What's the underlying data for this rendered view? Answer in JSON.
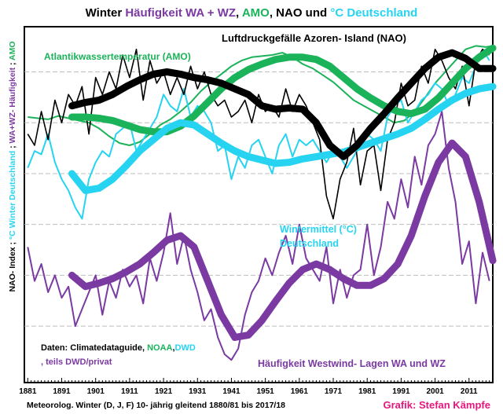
{
  "colors": {
    "amo": "#1bb35a",
    "nao": "#000000",
    "temp": "#26d4f2",
    "wz": "#7a3aa2",
    "credit": "#e5177d",
    "grid": "#bdbdbd"
  },
  "chart_data": {
    "type": "line",
    "title_parts": [
      {
        "text": "Winter ",
        "color": "#000000"
      },
      {
        "text": "Häufigkeit WA + WZ",
        "color": "#7a3aa2"
      },
      {
        "text": ", ",
        "color": "#000000"
      },
      {
        "text": "AMO",
        "color": "#1bb35a"
      },
      {
        "text": ", NAO und ",
        "color": "#000000"
      },
      {
        "text": "°C Deutschland",
        "color": "#26d4f2"
      }
    ],
    "ylabel_parts": [
      {
        "text": "NAO- Index ;",
        "color": "#000000"
      },
      {
        "text": "°C Winter Deutschland",
        "color": "#26d4f2"
      },
      {
        "text": ";",
        "color": "#000000"
      },
      {
        "text": "WA+WZ- Häufigkeit",
        "color": "#7a3aa2"
      },
      {
        "text": ";",
        "color": "#000000"
      },
      {
        "text": "AMO",
        "color": "#1bb35a"
      }
    ],
    "xlim": [
      1880,
      2018
    ],
    "x_ticks": [
      1881,
      1891,
      1901,
      1911,
      1921,
      1931,
      1941,
      1951,
      1961,
      1971,
      1981,
      1991,
      2001,
      2011
    ],
    "grid": "horizontal, dashed",
    "footer_left": "Meteorolog. Winter (D, J, F) 10- jährig gleitend 1880/81 bis 2017/18",
    "footer_right": "Grafik: Stefan Kämpfe",
    "sources_parts": [
      {
        "text": "Daten: Climatedataguide,  ",
        "color": "#000000"
      },
      {
        "text": "NOAA",
        "color": "#1bb35a"
      },
      {
        "text": ",",
        "color": "#000000"
      },
      {
        "text": "DWD",
        "color": "#26d4f2"
      },
      {
        "text": ", teils DWD/privat",
        "color": "#7a3aa2"
      }
    ],
    "series": [
      {
        "key": "amo",
        "name": "Atlantikwassertemperatur (AMO)",
        "raw_x": [
          1881,
          1884,
          1887,
          1890,
          1893,
          1896,
          1899,
          1902,
          1905,
          1908,
          1911,
          1914,
          1917,
          1920,
          1923,
          1926,
          1929,
          1932,
          1935,
          1938,
          1941,
          1944,
          1947,
          1950,
          1953,
          1956,
          1959,
          1962,
          1965,
          1968,
          1971,
          1974,
          1977,
          1980,
          1983,
          1986,
          1989,
          1992,
          1995,
          1998,
          2001,
          2004,
          2007,
          2010,
          2013,
          2016,
          2018
        ],
        "raw_y": [
          0.35,
          0.34,
          0.33,
          0.36,
          0.34,
          0.32,
          0.3,
          0.25,
          0.18,
          0.12,
          0.1,
          0.13,
          0.2,
          0.28,
          0.33,
          0.4,
          0.48,
          0.58,
          0.66,
          0.73,
          0.8,
          0.85,
          0.88,
          0.89,
          0.9,
          0.92,
          0.88,
          0.82,
          0.78,
          0.72,
          0.66,
          0.58,
          0.5,
          0.45,
          0.4,
          0.35,
          0.3,
          0.32,
          0.4,
          0.52,
          0.65,
          0.75,
          0.85,
          0.95,
          0.98,
          0.97,
          0.98
        ],
        "smooth_x": [
          1894,
          1898,
          1902,
          1906,
          1910,
          1914,
          1918,
          1922,
          1926,
          1930,
          1934,
          1938,
          1942,
          1946,
          1950,
          1954,
          1958,
          1962,
          1966,
          1970,
          1974,
          1978,
          1982,
          1986,
          1990,
          1994,
          1998,
          2002,
          2006,
          2010,
          2014,
          2018
        ],
        "smooth_y": [
          0.35,
          0.35,
          0.34,
          0.32,
          0.28,
          0.24,
          0.22,
          0.22,
          0.27,
          0.36,
          0.48,
          0.6,
          0.7,
          0.77,
          0.82,
          0.86,
          0.88,
          0.88,
          0.86,
          0.8,
          0.7,
          0.6,
          0.52,
          0.45,
          0.4,
          0.38,
          0.42,
          0.52,
          0.65,
          0.78,
          0.88,
          0.96
        ]
      },
      {
        "key": "nao",
        "name": "Luftdruckgefälle Azoren- Island (NAO)",
        "raw_x": [
          1881,
          1883,
          1885,
          1887,
          1889,
          1891,
          1893,
          1895,
          1897,
          1899,
          1901,
          1903,
          1905,
          1907,
          1909,
          1911,
          1913,
          1915,
          1917,
          1919,
          1921,
          1923,
          1925,
          1927,
          1929,
          1931,
          1933,
          1935,
          1937,
          1939,
          1941,
          1943,
          1945,
          1947,
          1949,
          1951,
          1953,
          1955,
          1957,
          1959,
          1961,
          1963,
          1965,
          1967,
          1969,
          1971,
          1973,
          1975,
          1977,
          1979,
          1981,
          1983,
          1985,
          1987,
          1989,
          1991,
          1993,
          1995,
          1997,
          1999,
          2001,
          2003,
          2005,
          2007,
          2009,
          2011,
          2013,
          2015,
          2017
        ],
        "raw_y": [
          0.2,
          0.1,
          0.4,
          0.15,
          0.5,
          0.3,
          0.55,
          0.45,
          0.62,
          0.2,
          0.7,
          0.55,
          0.75,
          0.6,
          0.9,
          0.7,
          0.95,
          0.5,
          0.85,
          0.65,
          0.75,
          0.55,
          0.7,
          0.55,
          0.8,
          0.6,
          0.75,
          0.55,
          0.45,
          0.5,
          0.35,
          0.4,
          0.5,
          0.3,
          0.55,
          0.4,
          0.45,
          0.35,
          0.6,
          0.4,
          0.55,
          0.45,
          0.3,
          0.15,
          -0.35,
          -0.55,
          -0.2,
          -0.05,
          0.25,
          -0.25,
          0.05,
          0.1,
          -0.3,
          0.15,
          0.3,
          0.65,
          0.45,
          0.5,
          0.8,
          0.65,
          0.95,
          0.85,
          0.7,
          0.6,
          0.8,
          0.45,
          0.85,
          0.95,
          0.9
        ],
        "smooth_x": [
          1894,
          1898,
          1902,
          1906,
          1910,
          1914,
          1918,
          1922,
          1926,
          1930,
          1934,
          1938,
          1942,
          1946,
          1950,
          1954,
          1958,
          1962,
          1966,
          1970,
          1974,
          1978,
          1982,
          1986,
          1990,
          1994,
          1998,
          2002,
          2006,
          2010,
          2014,
          2018
        ],
        "smooth_y": [
          0.45,
          0.48,
          0.5,
          0.55,
          0.62,
          0.68,
          0.73,
          0.75,
          0.73,
          0.7,
          0.68,
          0.65,
          0.6,
          0.55,
          0.45,
          0.42,
          0.43,
          0.42,
          0.3,
          0.1,
          0.0,
          0.1,
          0.25,
          0.38,
          0.52,
          0.65,
          0.78,
          0.88,
          0.92,
          0.87,
          0.78,
          0.78
        ]
      },
      {
        "key": "temp",
        "name": "Wintermittel (°C) Deutschland",
        "raw_x": [
          1881,
          1883,
          1885,
          1887,
          1889,
          1891,
          1893,
          1895,
          1897,
          1899,
          1901,
          1903,
          1905,
          1907,
          1909,
          1911,
          1913,
          1915,
          1917,
          1919,
          1921,
          1923,
          1925,
          1927,
          1929,
          1931,
          1933,
          1935,
          1937,
          1939,
          1941,
          1943,
          1945,
          1947,
          1949,
          1951,
          1953,
          1955,
          1957,
          1959,
          1961,
          1963,
          1965,
          1967,
          1969,
          1971,
          1973,
          1975,
          1977,
          1979,
          1981,
          1983,
          1985,
          1987,
          1989,
          1991,
          1993,
          1995,
          1997,
          1999,
          2001,
          2003,
          2005,
          2007,
          2009,
          2011,
          2013,
          2015,
          2017
        ],
        "raw_y": [
          -0.1,
          0.05,
          0.02,
          0.2,
          -0.05,
          -0.2,
          -0.3,
          -0.45,
          -0.55,
          -0.2,
          -0.05,
          0.05,
          0.0,
          0.2,
          0.25,
          0.3,
          0.05,
          0.15,
          0.25,
          0.35,
          0.55,
          0.45,
          0.4,
          0.6,
          0.35,
          0.45,
          0.4,
          0.3,
          0.05,
          0.1,
          -0.2,
          0.0,
          -0.1,
          0.1,
          0.15,
          0.0,
          -0.15,
          0.1,
          0.2,
          0.0,
          0.15,
          0.1,
          0.15,
          0.05,
          -0.05,
          0.05,
          0.0,
          -0.1,
          0.0,
          0.1,
          0.2,
          0.15,
          0.05,
          0.35,
          0.45,
          0.5,
          0.3,
          0.4,
          0.5,
          0.55,
          0.65,
          0.6,
          0.45,
          0.55,
          0.7,
          0.65,
          0.8,
          0.95,
          0.85
        ],
        "smooth_x": [
          1894,
          1898,
          1902,
          1906,
          1910,
          1914,
          1918,
          1922,
          1926,
          1930,
          1934,
          1938,
          1942,
          1946,
          1950,
          1954,
          1958,
          1962,
          1966,
          1970,
          1974,
          1978,
          1982,
          1986,
          1990,
          1994,
          1998,
          2002,
          2006,
          2010,
          2014,
          2018
        ],
        "smooth_y": [
          -0.15,
          -0.3,
          -0.28,
          -0.2,
          -0.08,
          0.05,
          0.15,
          0.25,
          0.3,
          0.28,
          0.2,
          0.12,
          0.05,
          0.0,
          -0.03,
          -0.06,
          -0.05,
          -0.02,
          0.0,
          0.02,
          0.04,
          0.08,
          0.12,
          0.16,
          0.2,
          0.25,
          0.33,
          0.42,
          0.5,
          0.56,
          0.6,
          0.62
        ]
      },
      {
        "key": "wz",
        "name": "Häufigkeit Westwind- Lagen WA und WZ",
        "raw_x": [
          1881,
          1883,
          1885,
          1887,
          1889,
          1891,
          1893,
          1895,
          1897,
          1899,
          1901,
          1903,
          1905,
          1907,
          1909,
          1911,
          1913,
          1915,
          1917,
          1919,
          1921,
          1923,
          1925,
          1927,
          1929,
          1931,
          1933,
          1935,
          1937,
          1939,
          1941,
          1943,
          1945,
          1947,
          1949,
          1951,
          1953,
          1955,
          1957,
          1959,
          1961,
          1963,
          1965,
          1967,
          1969,
          1971,
          1973,
          1975,
          1977,
          1979,
          1981,
          1983,
          1985,
          1987,
          1989,
          1991,
          1993,
          1995,
          1997,
          1999,
          2001,
          2003,
          2005,
          2007,
          2009,
          2011,
          2013,
          2015,
          2017
        ],
        "raw_y": [
          -0.8,
          -1.1,
          -0.95,
          -1.2,
          -1.05,
          -1.25,
          -1.15,
          -1.5,
          -1.35,
          -1.2,
          -1.05,
          -1.4,
          -1.1,
          -1.25,
          -1.0,
          -1.15,
          -1.05,
          -1.3,
          -0.9,
          -1.1,
          -0.85,
          -0.5,
          -0.95,
          -0.7,
          -1.0,
          -1.2,
          -1.45,
          -1.35,
          -1.6,
          -1.75,
          -1.8,
          -1.7,
          -1.4,
          -1.2,
          -1.1,
          -0.9,
          -1.05,
          -0.85,
          -0.7,
          -0.95,
          -0.6,
          -0.9,
          -1.0,
          -1.1,
          -0.8,
          -1.3,
          -1.0,
          -1.25,
          -1.05,
          -1.0,
          -0.6,
          -1.05,
          -0.8,
          -0.4,
          -0.55,
          -0.2,
          -0.45,
          0.0,
          -0.25,
          0.1,
          0.2,
          0.4,
          -0.1,
          -0.4,
          -0.95,
          -0.75,
          -1.3,
          -0.85,
          -1.1
        ],
        "smooth_x": [
          1894,
          1898,
          1902,
          1906,
          1910,
          1914,
          1918,
          1922,
          1926,
          1930,
          1934,
          1938,
          1942,
          1946,
          1950,
          1954,
          1958,
          1962,
          1966,
          1970,
          1974,
          1978,
          1982,
          1986,
          1990,
          1994,
          1998,
          2002,
          2006,
          2010,
          2014,
          2018
        ],
        "smooth_y": [
          -1.05,
          -1.15,
          -1.12,
          -1.08,
          -1.02,
          -0.95,
          -0.85,
          -0.74,
          -0.7,
          -0.8,
          -1.1,
          -1.4,
          -1.6,
          -1.58,
          -1.45,
          -1.28,
          -1.12,
          -1.0,
          -0.95,
          -1.0,
          -1.08,
          -1.14,
          -1.14,
          -1.08,
          -0.95,
          -0.7,
          -0.35,
          -0.05,
          0.12,
          0.0,
          -0.4,
          -0.92
        ]
      }
    ]
  },
  "labels": {
    "nao": "Luftdruckgefälle Azoren- Island (NAO)",
    "amo": "Atlantikwassertemperatur (AMO)",
    "temp_line1": "Wintermittel (°C)",
    "temp_line2": "Deutschland",
    "wz": "Häufigkeit Westwind- Lagen WA und WZ"
  }
}
